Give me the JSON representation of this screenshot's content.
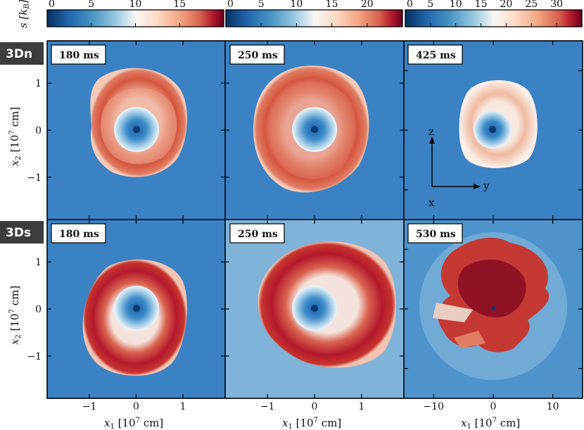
{
  "figure": {
    "colorbar_label": "s [k",
    "colorbar_label_sub": "B",
    "colorbar_label_close": "]",
    "row_labels": [
      "3Dn",
      "3Ds"
    ],
    "x_label": "x",
    "x_label_sub": "1",
    "x_label_unit": "[10",
    "x_label_exp": "7",
    "x_label_unit2": " cm]",
    "y_label": "x",
    "y_label_sub": "2",
    "y_label_unit": "[10",
    "y_label_exp": "7",
    "y_label_unit2": " cm]",
    "axes_triad": {
      "z": "z",
      "y": "y",
      "x": "x"
    },
    "cmap_colors": [
      "#053061",
      "#2166ac",
      "#4393c3",
      "#92c5de",
      "#f7f7f7",
      "#fddbc7",
      "#f4a582",
      "#d6604d",
      "#b2182b",
      "#67001f"
    ],
    "background_color": "#3a82c4"
  },
  "chart_data": {
    "type": "heatmap",
    "quantity": "s [kB]",
    "colorbars": [
      {
        "ticks": [
          0,
          5,
          10,
          15
        ],
        "range": [
          0,
          20
        ]
      },
      {
        "ticks": [
          0,
          5,
          10,
          15,
          20
        ],
        "range": [
          0,
          25
        ]
      },
      {
        "ticks": [
          0,
          5,
          10,
          15,
          20,
          25,
          30
        ],
        "range": [
          0,
          35
        ]
      }
    ],
    "panels": [
      {
        "row": "3Dn",
        "time": "180 ms",
        "xticks": [
          -1,
          0,
          1
        ],
        "yticks": [
          -1,
          0,
          1
        ],
        "xlim": [
          -1.9,
          1.9
        ],
        "ylim": [
          -1.9,
          1.9
        ]
      },
      {
        "row": "3Dn",
        "time": "250 ms",
        "xticks": [
          -1,
          0,
          1
        ],
        "yticks": [],
        "xlim": [
          -1.9,
          1.9
        ],
        "ylim": [
          -1.9,
          1.9
        ]
      },
      {
        "row": "3Dn",
        "time": "425 ms",
        "xticks": [
          -10,
          0,
          10
        ],
        "yticks": [],
        "xlim": [
          -15,
          15
        ],
        "ylim": [
          -15,
          15
        ]
      },
      {
        "row": "3Ds",
        "time": "180 ms",
        "xticks": [
          -1,
          0,
          1
        ],
        "yticks": [
          -1,
          0,
          1
        ],
        "xlim": [
          -1.9,
          1.9
        ],
        "ylim": [
          -1.9,
          1.9
        ]
      },
      {
        "row": "3Ds",
        "time": "250 ms",
        "xticks": [
          -1,
          0,
          1
        ],
        "yticks": [],
        "xlim": [
          -1.9,
          1.9
        ],
        "ylim": [
          -1.9,
          1.9
        ]
      },
      {
        "row": "3Ds",
        "time": "530 ms",
        "xticks": [
          -10,
          0,
          10
        ],
        "yticks": [],
        "xlim": [
          -15,
          15
        ],
        "ylim": [
          -15,
          15
        ]
      }
    ]
  }
}
